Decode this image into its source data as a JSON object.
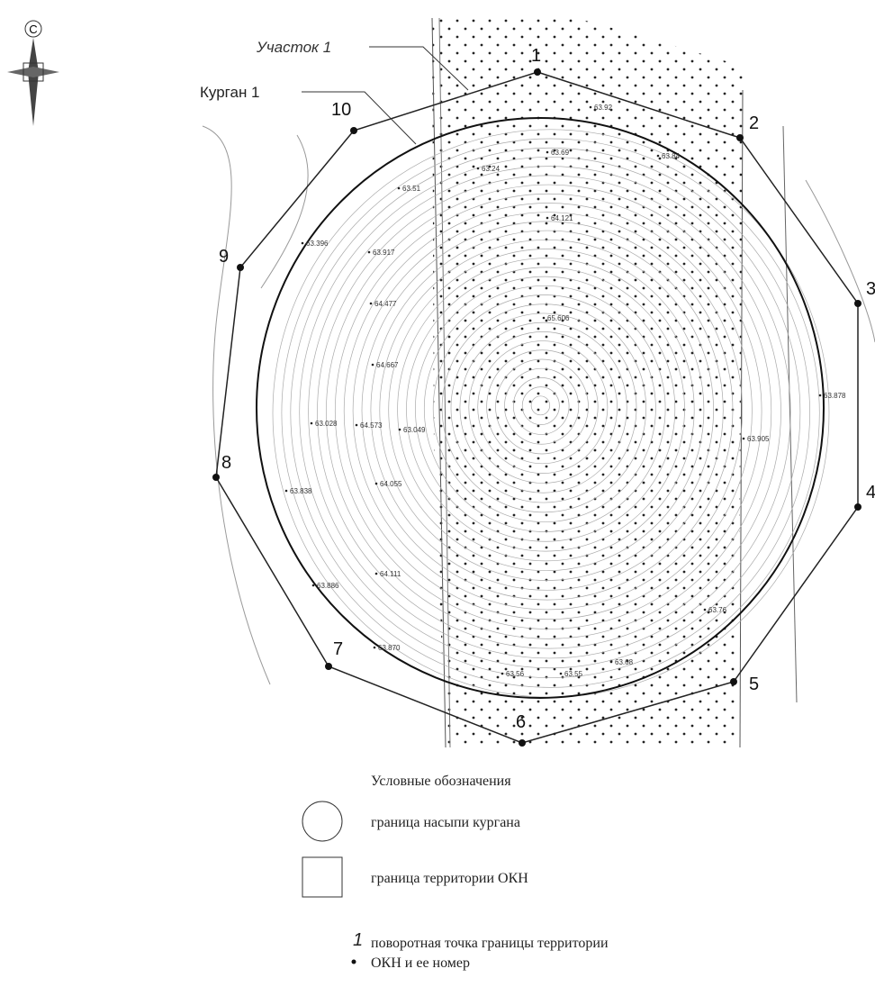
{
  "compass": "С",
  "labels": {
    "plot": "Участок 1",
    "mound": "Курган 1"
  },
  "points": [
    "1",
    "2",
    "3",
    "4",
    "5",
    "6",
    "7",
    "8",
    "9",
    "10"
  ],
  "elevations": [
    "63.92",
    "63.69",
    "63.24",
    "63.51",
    "63.84",
    "64.121",
    "63.917",
    "63.396",
    "64.477",
    "65.606",
    "64.667",
    "63.028",
    "64.573",
    "63.049",
    "63.878",
    "64.055",
    "63.76",
    "63.56",
    "63.55",
    "63.68",
    "63.870",
    "63.838",
    "63.886",
    "64.111",
    "63.905"
  ],
  "legend": {
    "title": "Условные обозначения",
    "items": [
      "граница насыпи кургана",
      "граница территории ОКН"
    ],
    "point_sample": "1",
    "point_text": [
      "поворотная точка границы территории",
      "ОКН и ее номер"
    ]
  }
}
